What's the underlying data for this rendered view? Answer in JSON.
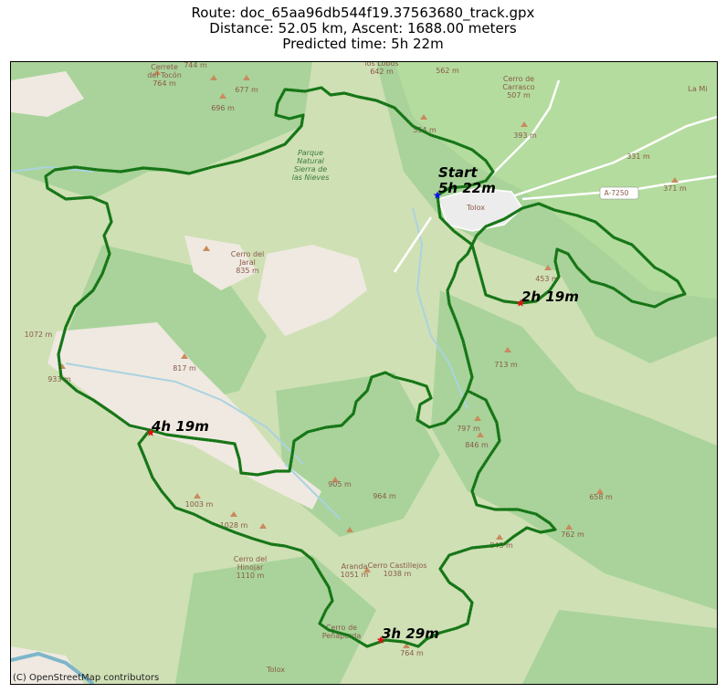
{
  "title": {
    "route": "Route: doc_65aa96db544f19.37563680_track.gpx",
    "stats": "Distance: 52.05 km, Ascent: 1688.00 meters",
    "predicted": "Predicted time: 5h 22m"
  },
  "map": {
    "attribution": "(C) OpenStreetMap contributors",
    "colors": {
      "track": "#1a7a1a",
      "start_marker": "#1010ee",
      "time_marker": "#e01010",
      "forest": "#a9d39a",
      "meadow": "#cfe0b5",
      "bare": "#efe9e1",
      "water": "#aad3df",
      "road": "#ffffff"
    },
    "place_labels": [
      {
        "text": "Cerrete\ndel Tocón\n764 m"
      },
      {
        "text": "744 m"
      },
      {
        "text": "677 m"
      },
      {
        "text": "696 m"
      },
      {
        "text": "los Lobos\n642 m"
      },
      {
        "text": "562 m"
      },
      {
        "text": "Cerro de\nCarrasco\n507 m"
      },
      {
        "text": "La Mi"
      },
      {
        "text": "554 m"
      },
      {
        "text": "393 m"
      },
      {
        "text": "331 m"
      },
      {
        "text": "371 m"
      },
      {
        "text": "Parque\nNatural\nSierra de\nlas Nieves"
      },
      {
        "text": "Tolox"
      },
      {
        "text": "A-7250"
      },
      {
        "text": "Cerro del\nJaral\n835 m"
      },
      {
        "text": "453 m"
      },
      {
        "text": "1072 m"
      },
      {
        "text": "817 m"
      },
      {
        "text": "933 m"
      },
      {
        "text": "713 m"
      },
      {
        "text": "797 m"
      },
      {
        "text": "846 m"
      },
      {
        "text": "905 m"
      },
      {
        "text": "964 m"
      },
      {
        "text": "658 m"
      },
      {
        "text": "1003 m"
      },
      {
        "text": "1028 m"
      },
      {
        "text": "Cerro del\nHinojar\n1110 m"
      },
      {
        "text": "Aranda\n1051 m"
      },
      {
        "text": "843 m"
      },
      {
        "text": "762 m"
      },
      {
        "text": "Cerro Castillejos\n1038 m"
      },
      {
        "text": "Cerro de\nPeñaparda"
      },
      {
        "text": "764 m"
      },
      {
        "text": "Tolox"
      }
    ],
    "markers": [
      {
        "kind": "start",
        "label": "Start\n5h 22m"
      },
      {
        "kind": "time",
        "label": "2h 19m"
      },
      {
        "kind": "time",
        "label": "4h 19m"
      },
      {
        "kind": "time",
        "label": "3h 29m"
      }
    ]
  }
}
